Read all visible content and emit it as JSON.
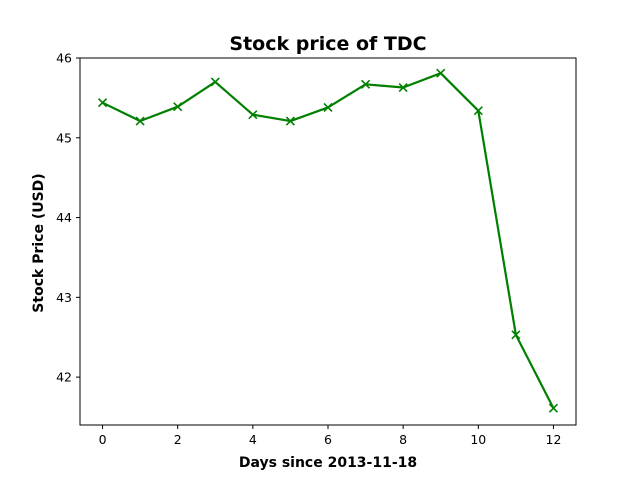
{
  "chart_data": {
    "type": "line",
    "title": "Stock price of TDC",
    "xlabel": "Days since 2013-11-18",
    "ylabel": "Stock Price (USD)",
    "xlim": [
      -0.6,
      12.6
    ],
    "ylim": [
      41.4,
      46.0
    ],
    "xticks": [
      0,
      2,
      4,
      6,
      8,
      10,
      12
    ],
    "yticks": [
      42,
      43,
      44,
      45,
      46
    ],
    "grid": false,
    "series": [
      {
        "color": "#008000",
        "marker": "x",
        "x": [
          0,
          1,
          2,
          3,
          4,
          5,
          6,
          7,
          8,
          9,
          10,
          11,
          12
        ],
        "y": [
          45.44,
          45.21,
          45.39,
          45.7,
          45.29,
          45.21,
          45.38,
          45.67,
          45.63,
          45.81,
          45.34,
          42.53,
          41.61
        ]
      }
    ]
  }
}
